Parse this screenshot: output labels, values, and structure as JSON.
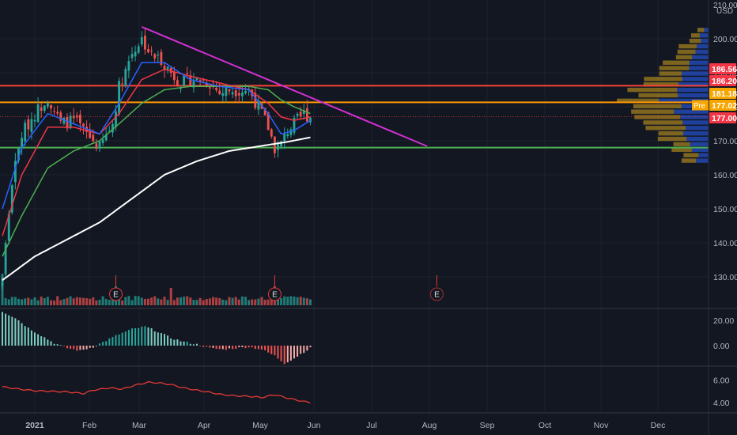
{
  "colors": {
    "background": "#131722",
    "grid": "#1e222d",
    "axis_text": "#b2b5be",
    "up": "#26a69a",
    "down": "#ef5350",
    "ema_fast": "#2962ff",
    "ema_mid": "#f23645",
    "ema_slow": "#4caf50",
    "sma_long": "#ffffff",
    "trendline": "#d030d0",
    "hline_red": "#f44336",
    "hline_orange": "#ff9800",
    "hline_green": "#4caf50",
    "vp_up": "#2962ff",
    "vp_down": "#c79a1e",
    "rsi_line": "#e53935"
  },
  "chart_data": [
    {
      "type": "candlestick",
      "ylim": [
        121,
        210
      ],
      "currency_label": "USD",
      "axis_top_label": "210.00",
      "y_ticks": [
        130,
        140,
        150,
        160,
        170,
        180,
        190,
        200
      ],
      "x_ticks": [
        "2021",
        "Feb",
        "Mar",
        "Apr",
        "May",
        "Jun",
        "Jul",
        "Aug",
        "Sep",
        "Oct",
        "Nov",
        "Dec"
      ],
      "price_labels": [
        {
          "text": "186.56",
          "value": 186.56,
          "color": "#f23645"
        },
        {
          "text": "186.20",
          "value": 186.2,
          "color": "#f23645"
        },
        {
          "text": "181.18",
          "value": 181.18,
          "color": "#f7a600"
        },
        {
          "text": "177.02",
          "value": 177.02,
          "color": "#f7a600",
          "tag": "Pre"
        },
        {
          "text": "177.00",
          "value": 177.0,
          "color": "#f23645"
        }
      ],
      "horizontal_lines": [
        {
          "value": 186.2,
          "color": "#f44336"
        },
        {
          "value": 181.3,
          "color": "#ff9800"
        },
        {
          "value": 168.0,
          "color": "#4caf50"
        }
      ],
      "trendline": {
        "from": {
          "day": 43,
          "price": 203.5
        },
        "to": {
          "day": 131,
          "price": 168.4
        }
      },
      "close_anchors": [
        [
          0,
          130
        ],
        [
          3,
          158
        ],
        [
          6,
          172
        ],
        [
          10,
          178
        ],
        [
          14,
          183
        ],
        [
          18,
          175
        ],
        [
          22,
          176
        ],
        [
          26,
          172
        ],
        [
          30,
          168
        ],
        [
          34,
          175
        ],
        [
          36,
          186
        ],
        [
          40,
          196
        ],
        [
          43,
          200
        ],
        [
          46,
          195
        ],
        [
          49,
          194
        ],
        [
          52,
          190
        ],
        [
          55,
          187
        ],
        [
          58,
          188
        ],
        [
          61,
          188
        ],
        [
          64,
          187
        ],
        [
          67,
          184
        ],
        [
          70,
          185
        ],
        [
          73,
          185
        ],
        [
          76,
          185
        ],
        [
          79,
          180
        ],
        [
          82,
          174
        ],
        [
          84,
          168
        ],
        [
          86,
          169
        ],
        [
          88,
          173
        ],
        [
          90,
          175
        ],
        [
          93,
          178
        ],
        [
          95,
          177
        ]
      ],
      "ema_fast_anchors": [
        [
          0,
          150
        ],
        [
          6,
          168
        ],
        [
          14,
          178
        ],
        [
          22,
          175
        ],
        [
          30,
          172
        ],
        [
          36,
          181
        ],
        [
          43,
          193
        ],
        [
          50,
          193
        ],
        [
          58,
          188
        ],
        [
          67,
          186
        ],
        [
          76,
          185
        ],
        [
          82,
          178
        ],
        [
          86,
          172
        ],
        [
          90,
          173
        ],
        [
          95,
          176
        ]
      ],
      "ema_mid_anchors": [
        [
          0,
          142
        ],
        [
          6,
          160
        ],
        [
          14,
          174
        ],
        [
          22,
          174
        ],
        [
          30,
          172
        ],
        [
          36,
          178
        ],
        [
          43,
          188
        ],
        [
          50,
          191
        ],
        [
          58,
          189
        ],
        [
          67,
          187
        ],
        [
          76,
          185
        ],
        [
          82,
          181
        ],
        [
          86,
          177
        ],
        [
          90,
          176
        ],
        [
          95,
          177
        ]
      ],
      "ema_slow_anchors": [
        [
          0,
          136
        ],
        [
          6,
          148
        ],
        [
          14,
          162
        ],
        [
          22,
          167
        ],
        [
          30,
          170
        ],
        [
          36,
          175
        ],
        [
          43,
          181
        ],
        [
          50,
          185
        ],
        [
          58,
          186
        ],
        [
          67,
          186
        ],
        [
          76,
          186
        ],
        [
          82,
          185
        ],
        [
          86,
          182
        ],
        [
          90,
          180
        ],
        [
          95,
          178
        ]
      ],
      "sma_long_anchors": [
        [
          0,
          129
        ],
        [
          10,
          136
        ],
        [
          20,
          141
        ],
        [
          30,
          146
        ],
        [
          40,
          153
        ],
        [
          50,
          160
        ],
        [
          60,
          164
        ],
        [
          70,
          167
        ],
        [
          80,
          168.5
        ],
        [
          88,
          169.7
        ],
        [
          95,
          171
        ]
      ],
      "earnings_markers": [
        {
          "label": "E",
          "day": 35,
          "type": "past"
        },
        {
          "label": "E",
          "day": 84,
          "type": "past"
        },
        {
          "label": "E",
          "day": 134,
          "type": "future"
        }
      ]
    },
    {
      "type": "bar",
      "name": "macd_histogram",
      "y_ticks": [
        0.0,
        20.0
      ],
      "y_tick_labels": [
        "0.00",
        "20.00"
      ],
      "ylim": [
        -18,
        30
      ],
      "anchors": [
        [
          0,
          27
        ],
        [
          4,
          22
        ],
        [
          8,
          14
        ],
        [
          12,
          8
        ],
        [
          16,
          2
        ],
        [
          20,
          -2
        ],
        [
          24,
          -4
        ],
        [
          28,
          -1
        ],
        [
          32,
          4
        ],
        [
          36,
          9
        ],
        [
          40,
          13
        ],
        [
          44,
          15
        ],
        [
          48,
          11
        ],
        [
          52,
          6
        ],
        [
          56,
          3
        ],
        [
          60,
          1
        ],
        [
          64,
          -2
        ],
        [
          68,
          -3
        ],
        [
          72,
          -2
        ],
        [
          76,
          -1
        ],
        [
          80,
          -3
        ],
        [
          84,
          -8
        ],
        [
          87,
          -14
        ],
        [
          90,
          -10
        ],
        [
          93,
          -5
        ],
        [
          95,
          -2
        ]
      ]
    },
    {
      "type": "line",
      "name": "oscillator",
      "y_ticks": [
        4.0,
        6.0
      ],
      "y_tick_labels": [
        "4.00",
        "6.00"
      ],
      "ylim": [
        3.2,
        7.0
      ],
      "anchors": [
        [
          0,
          5.4
        ],
        [
          5,
          5.2
        ],
        [
          10,
          5.05
        ],
        [
          15,
          5.0
        ],
        [
          20,
          4.95
        ],
        [
          25,
          4.8
        ],
        [
          28,
          5.1
        ],
        [
          33,
          5.3
        ],
        [
          37,
          5.2
        ],
        [
          41,
          5.55
        ],
        [
          45,
          5.8
        ],
        [
          48,
          5.75
        ],
        [
          52,
          5.6
        ],
        [
          56,
          5.3
        ],
        [
          60,
          5.1
        ],
        [
          64,
          4.9
        ],
        [
          68,
          4.7
        ],
        [
          72,
          4.6
        ],
        [
          76,
          4.55
        ],
        [
          80,
          4.45
        ],
        [
          84,
          4.7
        ],
        [
          88,
          4.4
        ],
        [
          92,
          4.15
        ],
        [
          95,
          4.0
        ]
      ]
    }
  ]
}
